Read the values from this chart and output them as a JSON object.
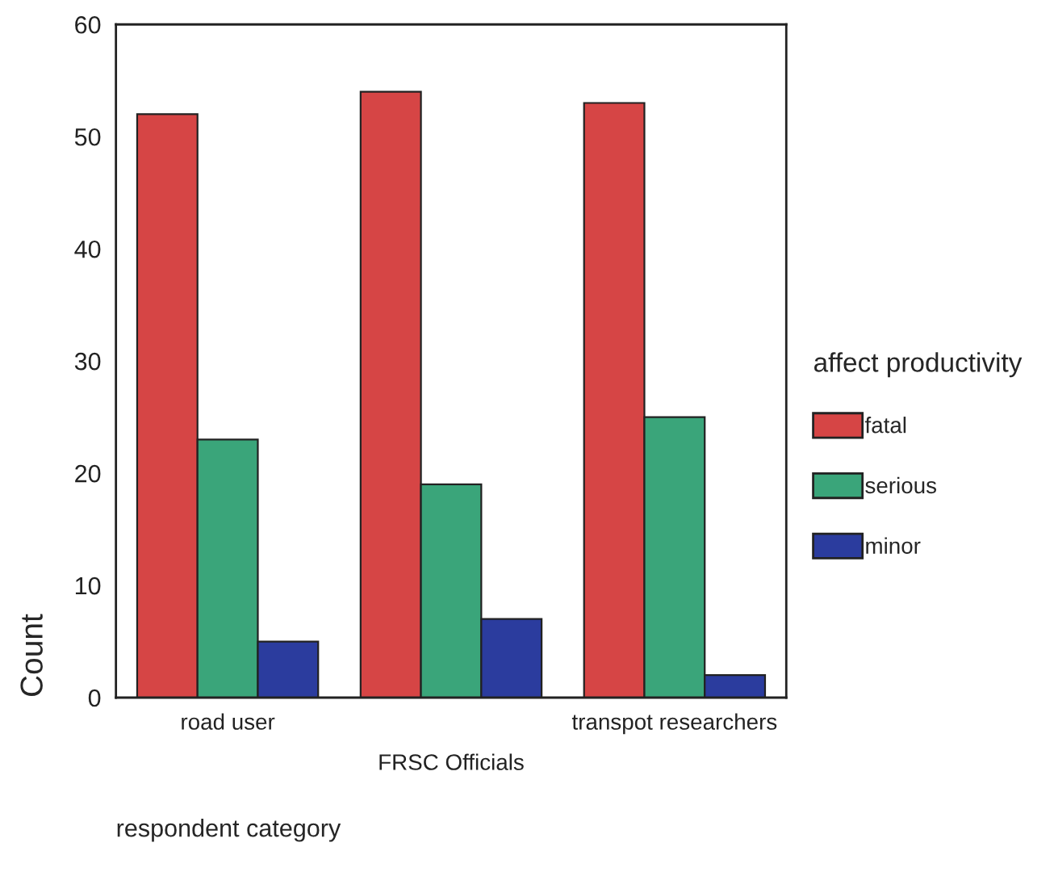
{
  "chart_data": {
    "type": "bar",
    "xlabel": "respondent category",
    "ylabel": "Count",
    "legend_title": "affect productivity",
    "categories": [
      "road user",
      "FRSC Officials",
      "transpot researchers"
    ],
    "series": [
      {
        "name": "fatal",
        "color": "#d64545",
        "values": [
          52,
          54,
          53
        ]
      },
      {
        "name": "serious",
        "color": "#3aa57a",
        "values": [
          23,
          19,
          25
        ]
      },
      {
        "name": "minor",
        "color": "#2b3c9e",
        "values": [
          5,
          7,
          2
        ]
      }
    ],
    "ylim": [
      0,
      60
    ],
    "yticks": [
      0,
      10,
      20,
      30,
      40,
      50,
      60
    ],
    "grid": false,
    "legend": "right"
  }
}
